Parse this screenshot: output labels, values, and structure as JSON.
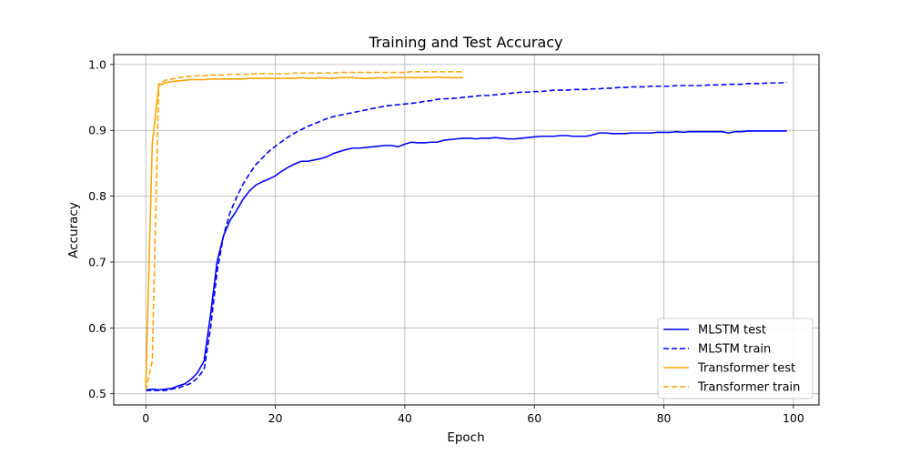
{
  "chart_data": {
    "type": "line",
    "title": "Training and Test Accuracy",
    "xlabel": "Epoch",
    "ylabel": "Accuracy",
    "xlim": [
      -4.95,
      103.95
    ],
    "ylim": [
      0.483,
      1.015
    ],
    "xticks": [
      0,
      20,
      40,
      60,
      80,
      100
    ],
    "yticks": [
      0.5,
      0.6,
      0.7,
      0.8,
      0.9,
      1.0
    ],
    "xtick_labels": [
      "0",
      "20",
      "40",
      "60",
      "80",
      "100"
    ],
    "ytick_labels": [
      "0.5",
      "0.6",
      "0.7",
      "0.8",
      "0.9",
      "1.0"
    ],
    "grid": true,
    "legend_position": "lower-right",
    "series": [
      {
        "name": "MLSTM test",
        "color": "#0000ff",
        "dash": "solid",
        "x": [
          0,
          1,
          2,
          3,
          4,
          5,
          6,
          7,
          8,
          9,
          10,
          11,
          12,
          13,
          14,
          15,
          16,
          17,
          18,
          19,
          20,
          21,
          22,
          23,
          24,
          25,
          26,
          27,
          28,
          29,
          30,
          31,
          32,
          33,
          34,
          35,
          36,
          37,
          38,
          39,
          40,
          41,
          42,
          43,
          44,
          45,
          46,
          47,
          48,
          49,
          50,
          51,
          52,
          53,
          54,
          55,
          56,
          57,
          58,
          59,
          60,
          61,
          62,
          63,
          64,
          65,
          66,
          67,
          68,
          69,
          70,
          71,
          72,
          73,
          74,
          75,
          76,
          77,
          78,
          79,
          80,
          81,
          82,
          83,
          84,
          85,
          86,
          87,
          88,
          89,
          90,
          91,
          92,
          93,
          94,
          95,
          96,
          97,
          98,
          99
        ],
        "y": [
          0.506,
          0.507,
          0.506,
          0.507,
          0.508,
          0.512,
          0.515,
          0.522,
          0.532,
          0.55,
          0.62,
          0.7,
          0.74,
          0.763,
          0.778,
          0.795,
          0.808,
          0.817,
          0.822,
          0.826,
          0.831,
          0.838,
          0.844,
          0.849,
          0.853,
          0.853,
          0.855,
          0.857,
          0.86,
          0.865,
          0.868,
          0.871,
          0.873,
          0.873,
          0.874,
          0.875,
          0.876,
          0.877,
          0.877,
          0.875,
          0.879,
          0.882,
          0.881,
          0.881,
          0.882,
          0.882,
          0.885,
          0.886,
          0.887,
          0.888,
          0.888,
          0.887,
          0.888,
          0.888,
          0.889,
          0.888,
          0.887,
          0.887,
          0.888,
          0.889,
          0.89,
          0.891,
          0.891,
          0.891,
          0.892,
          0.892,
          0.891,
          0.891,
          0.891,
          0.893,
          0.896,
          0.896,
          0.895,
          0.895,
          0.895,
          0.896,
          0.896,
          0.896,
          0.896,
          0.897,
          0.897,
          0.897,
          0.898,
          0.897,
          0.898,
          0.898,
          0.898,
          0.898,
          0.898,
          0.898,
          0.896,
          0.898,
          0.898,
          0.899,
          0.899,
          0.899,
          0.899,
          0.899,
          0.899,
          0.899
        ]
      },
      {
        "name": "MLSTM train",
        "color": "#0000ff",
        "dash": "dashed",
        "x": [
          0,
          1,
          2,
          3,
          4,
          5,
          6,
          7,
          8,
          9,
          10,
          11,
          12,
          13,
          14,
          15,
          16,
          17,
          18,
          19,
          20,
          21,
          22,
          23,
          24,
          25,
          26,
          27,
          28,
          29,
          30,
          31,
          32,
          33,
          34,
          35,
          36,
          37,
          38,
          39,
          40,
          41,
          42,
          43,
          44,
          45,
          46,
          47,
          48,
          49,
          50,
          51,
          52,
          53,
          54,
          55,
          56,
          57,
          58,
          59,
          60,
          61,
          62,
          63,
          64,
          65,
          66,
          67,
          68,
          69,
          70,
          71,
          72,
          73,
          74,
          75,
          76,
          77,
          78,
          79,
          80,
          81,
          82,
          83,
          84,
          85,
          86,
          87,
          88,
          89,
          90,
          91,
          92,
          93,
          94,
          95,
          96,
          97,
          98,
          99
        ],
        "y": [
          0.505,
          0.505,
          0.505,
          0.505,
          0.507,
          0.509,
          0.512,
          0.516,
          0.524,
          0.537,
          0.6,
          0.685,
          0.74,
          0.775,
          0.798,
          0.818,
          0.834,
          0.848,
          0.858,
          0.868,
          0.876,
          0.883,
          0.89,
          0.896,
          0.901,
          0.906,
          0.91,
          0.914,
          0.918,
          0.921,
          0.923,
          0.925,
          0.927,
          0.929,
          0.931,
          0.933,
          0.935,
          0.937,
          0.938,
          0.939,
          0.94,
          0.941,
          0.942,
          0.944,
          0.945,
          0.947,
          0.948,
          0.948,
          0.949,
          0.95,
          0.951,
          0.952,
          0.953,
          0.953,
          0.954,
          0.955,
          0.956,
          0.957,
          0.958,
          0.958,
          0.959,
          0.959,
          0.96,
          0.961,
          0.961,
          0.961,
          0.962,
          0.962,
          0.962,
          0.963,
          0.963,
          0.964,
          0.964,
          0.965,
          0.965,
          0.966,
          0.966,
          0.966,
          0.967,
          0.967,
          0.967,
          0.967,
          0.968,
          0.968,
          0.968,
          0.968,
          0.968,
          0.969,
          0.969,
          0.969,
          0.97,
          0.97,
          0.97,
          0.971,
          0.971,
          0.971,
          0.972,
          0.972,
          0.972,
          0.973
        ]
      },
      {
        "name": "Transformer test",
        "color": "#ffa500",
        "dash": "solid",
        "x": [
          0,
          1,
          2,
          3,
          4,
          5,
          6,
          7,
          8,
          9,
          10,
          11,
          12,
          13,
          14,
          15,
          16,
          17,
          18,
          19,
          20,
          21,
          22,
          23,
          24,
          25,
          26,
          27,
          28,
          29,
          30,
          31,
          32,
          33,
          34,
          35,
          36,
          37,
          38,
          39,
          40,
          41,
          42,
          43,
          44,
          45,
          46,
          47,
          48,
          49
        ],
        "y": [
          0.51,
          0.88,
          0.968,
          0.972,
          0.974,
          0.975,
          0.976,
          0.977,
          0.977,
          0.977,
          0.978,
          0.978,
          0.978,
          0.978,
          0.978,
          0.978,
          0.979,
          0.979,
          0.979,
          0.979,
          0.979,
          0.979,
          0.979,
          0.979,
          0.98,
          0.979,
          0.979,
          0.98,
          0.979,
          0.979,
          0.98,
          0.98,
          0.98,
          0.979,
          0.979,
          0.979,
          0.98,
          0.979,
          0.98,
          0.98,
          0.98,
          0.98,
          0.98,
          0.98,
          0.98,
          0.981,
          0.98,
          0.98,
          0.98,
          0.98
        ]
      },
      {
        "name": "Transformer train",
        "color": "#ffa500",
        "dash": "dashed",
        "x": [
          0,
          1,
          2,
          3,
          4,
          5,
          6,
          7,
          8,
          9,
          10,
          11,
          12,
          13,
          14,
          15,
          16,
          17,
          18,
          19,
          20,
          21,
          22,
          23,
          24,
          25,
          26,
          27,
          28,
          29,
          30,
          31,
          32,
          33,
          34,
          35,
          36,
          37,
          38,
          39,
          40,
          41,
          42,
          43,
          44,
          45,
          46,
          47,
          48,
          49
        ],
        "y": [
          0.505,
          0.55,
          0.97,
          0.976,
          0.978,
          0.98,
          0.981,
          0.982,
          0.983,
          0.983,
          0.984,
          0.984,
          0.984,
          0.985,
          0.985,
          0.985,
          0.985,
          0.986,
          0.986,
          0.986,
          0.986,
          0.986,
          0.986,
          0.987,
          0.987,
          0.987,
          0.987,
          0.987,
          0.987,
          0.987,
          0.988,
          0.988,
          0.988,
          0.988,
          0.988,
          0.988,
          0.988,
          0.988,
          0.988,
          0.988,
          0.988,
          0.989,
          0.989,
          0.989,
          0.989,
          0.989,
          0.989,
          0.989,
          0.989,
          0.989
        ]
      }
    ]
  }
}
